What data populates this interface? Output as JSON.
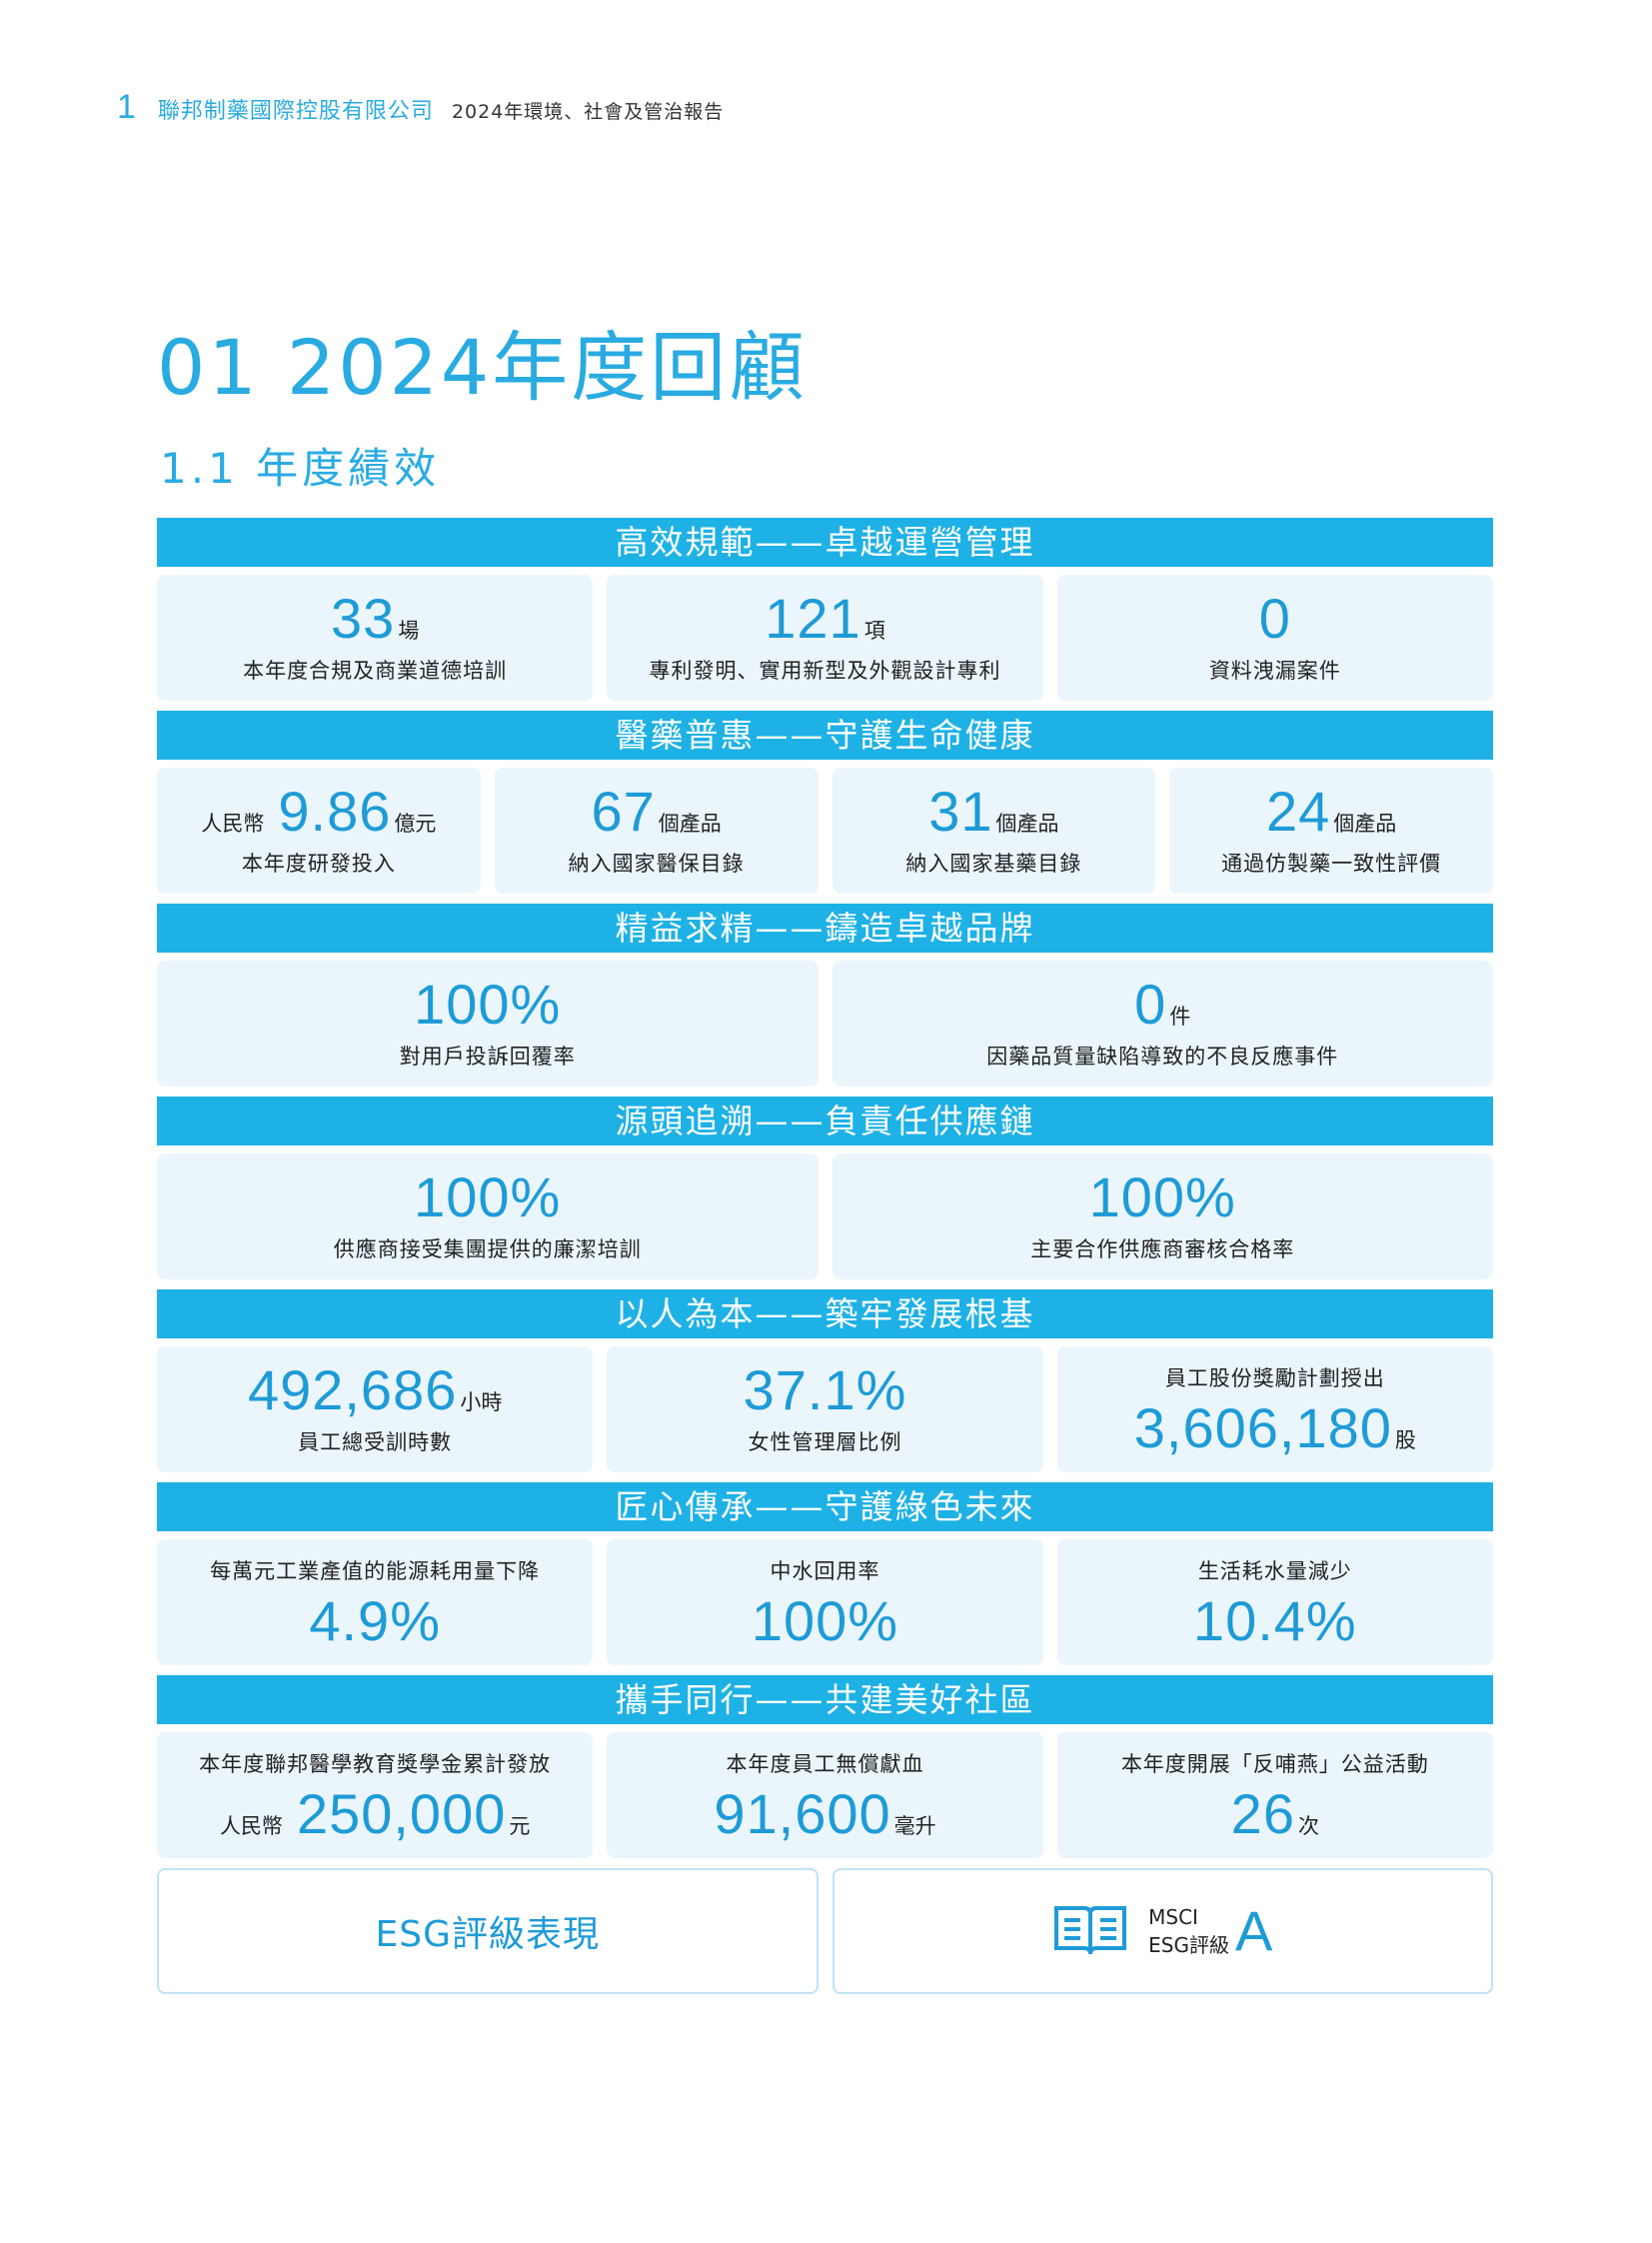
{
  "header": {
    "page_number": "1",
    "company": "聯邦制藥國際控股有限公司",
    "report_title": "2024年環境、社會及管治報告"
  },
  "title": "01 2024年度回顧",
  "subtitle": "1.1 年度績效",
  "sections": [
    {
      "title": "高效規範——卓越運營管理",
      "cards": [
        {
          "value": "33",
          "unit": "場",
          "label": "本年度合規及商業道德培訓"
        },
        {
          "value": "121",
          "unit": "項",
          "label": "專利發明、實用新型及外觀設計專利"
        },
        {
          "value": "0",
          "unit": "",
          "label": "資料洩漏案件"
        }
      ]
    },
    {
      "title": "醫藥普惠——守護生命健康",
      "cards": [
        {
          "prefix": "人民幣",
          "value": "9.86",
          "unit": "億元",
          "label": "本年度研發投入"
        },
        {
          "value": "67",
          "unit": "個產品",
          "label": "納入國家醫保目錄"
        },
        {
          "value": "31",
          "unit": "個產品",
          "label": "納入國家基藥目錄"
        },
        {
          "value": "24",
          "unit": "個產品",
          "label": "通過仿製藥一致性評價"
        }
      ]
    },
    {
      "title": "精益求精——鑄造卓越品牌",
      "cards": [
        {
          "value": "100%",
          "unit": "",
          "label": "對用戶投訴回覆率"
        },
        {
          "value": "0",
          "unit": "件",
          "label": "因藥品質量缺陷導致的不良反應事件"
        }
      ]
    },
    {
      "title": "源頭追溯——負責任供應鏈",
      "cards": [
        {
          "value": "100%",
          "unit": "",
          "label": "供應商接受集團提供的廉潔培訓"
        },
        {
          "value": "100%",
          "unit": "",
          "label": "主要合作供應商審核合格率"
        }
      ]
    },
    {
      "title": "以人為本——築牢發展根基",
      "cards": [
        {
          "value": "492,686",
          "unit": "小時",
          "label": "員工總受訓時數"
        },
        {
          "value": "37.1%",
          "unit": "",
          "label": "女性管理層比例"
        },
        {
          "top_label": "員工股份獎勵計劃授出",
          "value": "3,606,180",
          "unit": "股"
        }
      ]
    },
    {
      "title": "匠心傳承——守護綠色未來",
      "cards": [
        {
          "top_label": "每萬元工業產值的能源耗用量下降",
          "value": "4.9%",
          "unit": ""
        },
        {
          "top_label": "中水回用率",
          "value": "100%",
          "unit": ""
        },
        {
          "top_label": "生活耗水量減少",
          "value": "10.4%",
          "unit": ""
        }
      ]
    },
    {
      "title": "攜手同行——共建美好社區",
      "cards": [
        {
          "top_label": "本年度聯邦醫學教育獎學金累計發放",
          "prefix": "人民幣",
          "value": "250,000",
          "unit": "元"
        },
        {
          "top_label": "本年度員工無償獻血",
          "value": "91,600",
          "unit": "毫升"
        },
        {
          "top_label": "本年度開展「反哺燕」公益活動",
          "value": "26",
          "unit": "次"
        }
      ]
    }
  ],
  "esg": {
    "title": "ESG評級表現",
    "rating_line1": "MSCI",
    "rating_line2": "ESG評級",
    "grade": "A",
    "icon": "book-icon",
    "accent": "#1e9bd7"
  }
}
